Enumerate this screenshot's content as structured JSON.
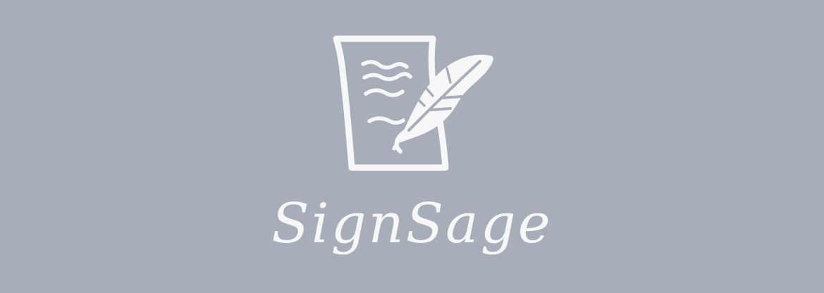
{
  "brand": {
    "name": "SignSage"
  },
  "logo": {
    "icon": "document-quill-icon"
  },
  "colors": {
    "background": "#a8aeb9",
    "foreground": "#f7f7f8"
  }
}
